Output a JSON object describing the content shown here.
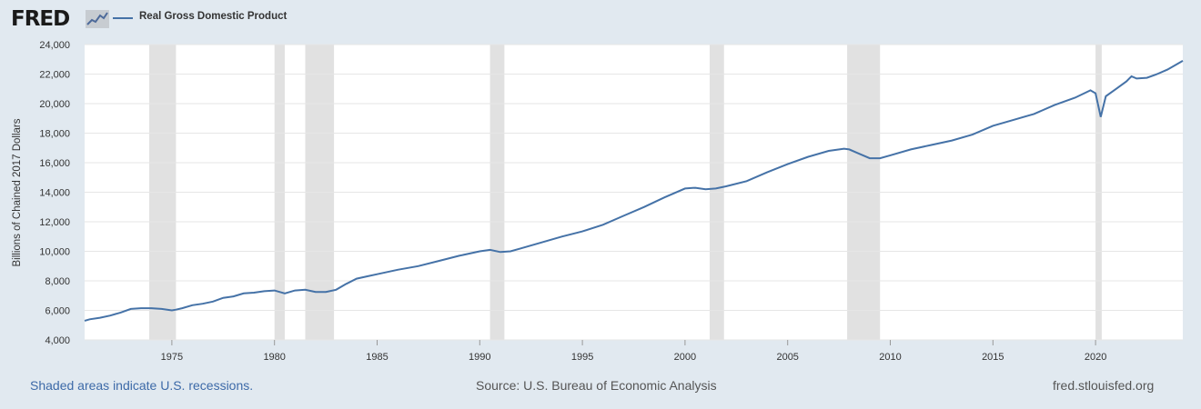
{
  "header": {
    "logo_text": "FRED",
    "series_label": "Real Gross Domestic Product"
  },
  "footer": {
    "recessions_note": "Shaded areas indicate U.S. recessions.",
    "source": "Source: U.S. Bureau of Economic Analysis",
    "site": "fred.stlouisfed.org"
  },
  "colors": {
    "series": "#4572a7",
    "recession": "#e1e1e1",
    "background": "#e1e9f0"
  },
  "chart_data": {
    "type": "line",
    "title": "",
    "ylabel": "Billions of Chained 2017 Dollars",
    "xlabel": "",
    "xlim": [
      1970.75,
      2024.25
    ],
    "ylim": [
      4000,
      24000
    ],
    "y_ticks": [
      4000,
      6000,
      8000,
      10000,
      12000,
      14000,
      16000,
      18000,
      20000,
      22000,
      24000
    ],
    "y_tick_labels": [
      "4,000",
      "6,000",
      "8,000",
      "10,000",
      "12,000",
      "14,000",
      "16,000",
      "18,000",
      "20,000",
      "22,000",
      "24,000"
    ],
    "x_ticks": [
      1975,
      1980,
      1985,
      1990,
      1995,
      2000,
      2005,
      2010,
      2015,
      2020
    ],
    "x_tick_labels": [
      "1975",
      "1980",
      "1985",
      "1990",
      "1995",
      "2000",
      "2005",
      "2010",
      "2015",
      "2020"
    ],
    "grid": "horizontal",
    "recessions": [
      [
        1973.9,
        1975.2
      ],
      [
        1980.0,
        1980.5
      ],
      [
        1981.5,
        1982.9
      ],
      [
        1990.5,
        1991.2
      ],
      [
        2001.2,
        2001.9
      ],
      [
        2007.9,
        2009.5
      ],
      [
        2020.0,
        2020.3
      ]
    ],
    "series": [
      {
        "x": [
          1970.75,
          1971.0,
          1971.5,
          1972.0,
          1972.5,
          1973.0,
          1973.5,
          1974.0,
          1974.5,
          1975.0,
          1975.2,
          1975.5,
          1976.0,
          1976.5,
          1977.0,
          1977.5,
          1978.0,
          1978.5,
          1979.0,
          1979.5,
          1980.0,
          1980.5,
          1981.0,
          1981.5,
          1982.0,
          1982.5,
          1983.0,
          1983.5,
          1984.0,
          1984.5,
          1985.0,
          1986.0,
          1987.0,
          1988.0,
          1989.0,
          1990.0,
          1990.5,
          1991.0,
          1991.5,
          1992.0,
          1993.0,
          1994.0,
          1995.0,
          1996.0,
          1997.0,
          1998.0,
          1999.0,
          2000.0,
          2000.5,
          2001.0,
          2001.5,
          2002.0,
          2003.0,
          2004.0,
          2005.0,
          2006.0,
          2007.0,
          2007.75,
          2008.0,
          2008.5,
          2009.0,
          2009.5,
          2010.0,
          2011.0,
          2012.0,
          2013.0,
          2014.0,
          2015.0,
          2016.0,
          2017.0,
          2018.0,
          2019.0,
          2019.75,
          2020.0,
          2020.25,
          2020.5,
          2021.0,
          2021.5,
          2021.75,
          2022.0,
          2022.5,
          2023.0,
          2023.5,
          2024.0,
          2024.25
        ],
        "values": [
          5300,
          5400,
          5500,
          5650,
          5850,
          6100,
          6150,
          6150,
          6100,
          6000,
          6050,
          6150,
          6350,
          6450,
          6600,
          6850,
          6950,
          7150,
          7200,
          7300,
          7350,
          7150,
          7350,
          7400,
          7250,
          7250,
          7400,
          7800,
          8150,
          8300,
          8450,
          8750,
          9000,
          9350,
          9700,
          10000,
          10100,
          9950,
          10000,
          10200,
          10600,
          11000,
          11350,
          11800,
          12400,
          13000,
          13650,
          14250,
          14300,
          14200,
          14250,
          14400,
          14750,
          15350,
          15900,
          16400,
          16800,
          16950,
          16900,
          16600,
          16300,
          16300,
          16500,
          16900,
          17200,
          17500,
          17900,
          18500,
          18900,
          19300,
          19900,
          20400,
          20900,
          20700,
          19100,
          20500,
          21000,
          21500,
          21850,
          21700,
          21750,
          22000,
          22300,
          22700,
          22900
        ]
      }
    ]
  }
}
